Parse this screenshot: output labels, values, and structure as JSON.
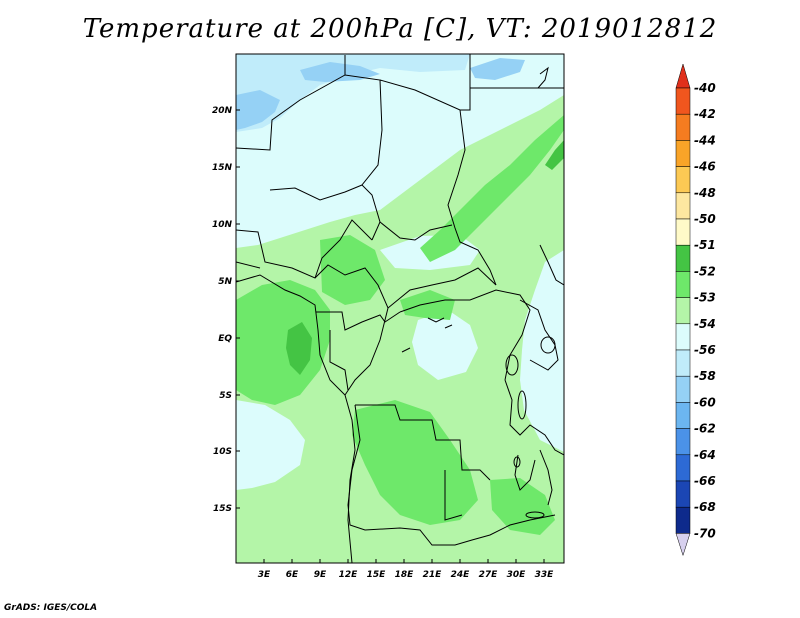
{
  "title": "Temperature at 200hPa [C], VT: 2019012812",
  "footer": "GrADS: IGES/COLA",
  "map": {
    "lon_range": [
      0,
      35
    ],
    "lat_range": [
      -19,
      24.5
    ],
    "lon_ticks": [
      "3E",
      "6E",
      "9E",
      "12E",
      "15E",
      "18E",
      "21E",
      "24E",
      "27E",
      "30E",
      "33E"
    ],
    "lat_ticks": [
      "20N",
      "15N",
      "10N",
      "5N",
      "EQ",
      "5S",
      "10S",
      "15S"
    ]
  },
  "colorbar": {
    "labels": [
      "-40",
      "-42",
      "-44",
      "-46",
      "-48",
      "-50",
      "-51",
      "-52",
      "-53",
      "-54",
      "-56",
      "-58",
      "-60",
      "-62",
      "-64",
      "-66",
      "-68",
      "-70"
    ],
    "colors": [
      "#e0301c",
      "#f0561e",
      "#f57c20",
      "#f9a428",
      "#fcc954",
      "#fde7a0",
      "#fffac8",
      "#44c444",
      "#6ee86a",
      "#b4f5a8",
      "#dcfcfc",
      "#c0ecfa",
      "#95d1f5",
      "#6cb6f0",
      "#4b92e8",
      "#2d6ad5",
      "#1b46b4",
      "#0e2a8c",
      "#06166a"
    ],
    "top_color": "#e0301c",
    "bottom_color": "#d7d0ee"
  }
}
